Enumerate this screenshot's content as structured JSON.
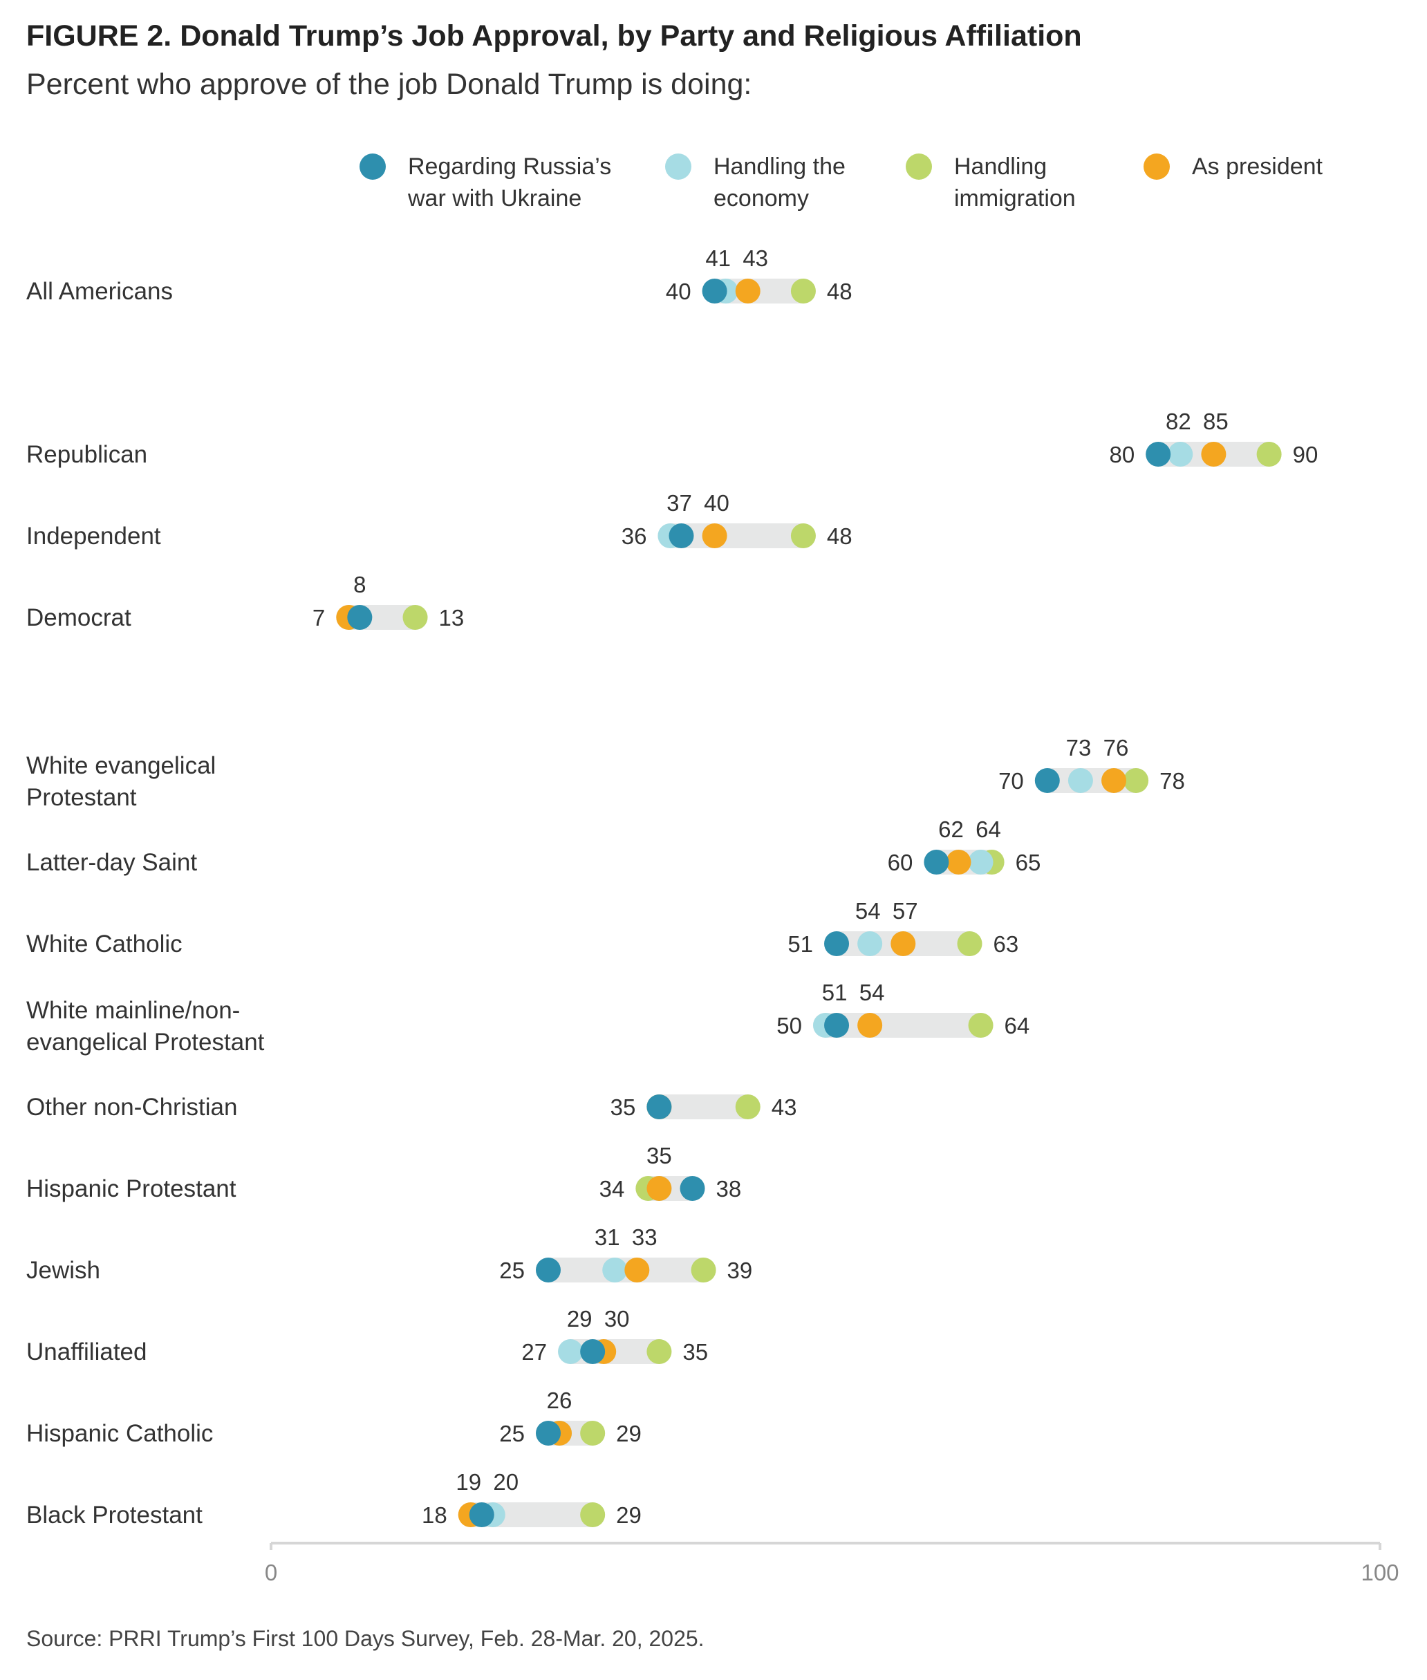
{
  "title": "FIGURE 2.  Donald Trump’s Job Approval, by Party and Religious Affiliation",
  "subtitle": "Percent who approve of the job Donald Trump is doing:",
  "source": "Source: PRRI Trump’s First 100 Days Survey, Feb. 28-Mar. 20, 2025.",
  "legend": [
    {
      "key": "russia",
      "label": "Regarding Russia’s war with Ukraine",
      "color": "#2E8FAE"
    },
    {
      "key": "economy",
      "label": "Handling the economy",
      "color": "#A6DCE4"
    },
    {
      "key": "immigration",
      "label": "Handling immigration",
      "color": "#BDD76A"
    },
    {
      "key": "president",
      "label": "As president",
      "color": "#F4A620"
    }
  ],
  "chart_data": {
    "type": "dot-range",
    "xlim": [
      0,
      100
    ],
    "x_ticks": [
      "0",
      "100"
    ],
    "series_order": [
      "russia",
      "economy",
      "immigration",
      "president"
    ],
    "rows": [
      {
        "label": "All Americans",
        "russia": 40,
        "economy": 41,
        "immigration": 48,
        "president": 43,
        "labels": {
          "left": "40",
          "right": "48",
          "top": [
            "41",
            "43"
          ]
        }
      },
      {
        "label": "Republican",
        "russia": 80,
        "economy": 82,
        "immigration": 90,
        "president": 85,
        "labels": {
          "left": "80",
          "right": "90",
          "top": [
            "82",
            "85"
          ]
        }
      },
      {
        "label": "Independent",
        "russia": 37,
        "economy": 36,
        "immigration": 48,
        "president": 40,
        "labels": {
          "left": "36",
          "right": "48",
          "top": [
            "37",
            "40"
          ]
        }
      },
      {
        "label": "Democrat",
        "russia": 8,
        "economy": 8,
        "immigration": 13,
        "president": 7,
        "labels": {
          "left": "7",
          "right": "13",
          "top": [
            "8"
          ]
        }
      },
      {
        "label": "White evangelical Protestant",
        "russia": 70,
        "economy": 73,
        "immigration": 78,
        "president": 76,
        "labels": {
          "left": "70",
          "right": "78",
          "top": [
            "73",
            "76"
          ]
        }
      },
      {
        "label": "Latter-day Saint",
        "russia": 60,
        "economy": 64,
        "immigration": 65,
        "president": 62,
        "labels": {
          "left": "60",
          "right": "65",
          "top": [
            "62",
            "64"
          ]
        }
      },
      {
        "label": "White Catholic",
        "russia": 51,
        "economy": 54,
        "immigration": 63,
        "president": 57,
        "labels": {
          "left": "51",
          "right": "63",
          "top": [
            "54",
            "57"
          ]
        }
      },
      {
        "label": "White mainline/non-evangelical Protestant",
        "russia": 51,
        "economy": 50,
        "immigration": 64,
        "president": 54,
        "labels": {
          "left": "50",
          "right": "64",
          "top": [
            "51",
            "54"
          ]
        }
      },
      {
        "label": "Other non-Christian",
        "russia": 35,
        "economy": 35,
        "immigration": 43,
        "president": 35,
        "labels": {
          "left": "35",
          "right": "43",
          "top": []
        }
      },
      {
        "label": "Hispanic Protestant",
        "russia": 38,
        "economy": 35,
        "immigration": 34,
        "president": 35,
        "labels": {
          "left": "34",
          "right": "38",
          "top": [
            "35"
          ]
        }
      },
      {
        "label": "Jewish",
        "russia": 25,
        "economy": 31,
        "immigration": 39,
        "president": 33,
        "labels": {
          "left": "25",
          "right": "39",
          "top": [
            "31",
            "33"
          ]
        }
      },
      {
        "label": "Unaffiliated",
        "russia": 29,
        "economy": 27,
        "immigration": 35,
        "president": 30,
        "labels": {
          "left": "27",
          "right": "35",
          "top": [
            "29",
            "30"
          ]
        }
      },
      {
        "label": "Hispanic Catholic",
        "russia": 25,
        "economy": 26,
        "immigration": 29,
        "president": 26,
        "labels": {
          "left": "25",
          "right": "29",
          "top": [
            "26"
          ]
        }
      },
      {
        "label": "Black Protestant",
        "russia": 19,
        "economy": 20,
        "immigration": 29,
        "president": 18,
        "labels": {
          "left": "18",
          "right": "29",
          "top": [
            "19",
            "20"
          ]
        }
      }
    ]
  }
}
